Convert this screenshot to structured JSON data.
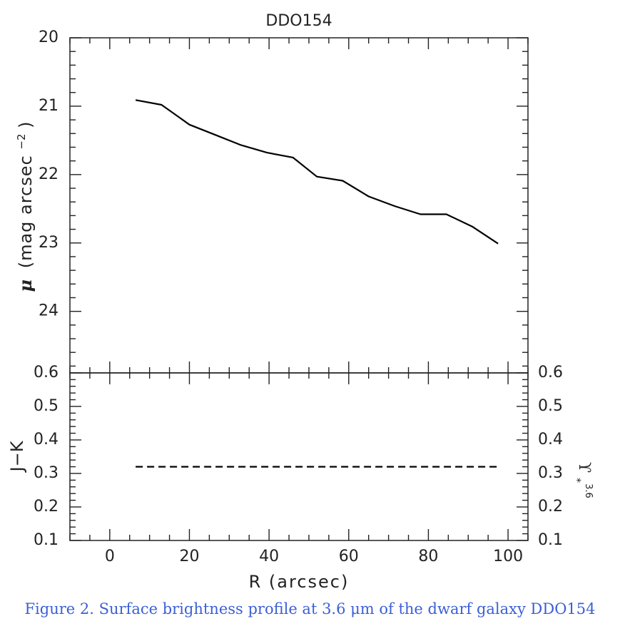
{
  "caption": "Figure 2. Surface brightness profile at 3.6 μm of the dwarf galaxy DDO154",
  "chart_data": [
    {
      "type": "line",
      "title": "DDO154",
      "ylabel": "μ (mag arcsec⁻²)",
      "ylabel_parts": {
        "mu": "μ",
        "text": "(mag arcsec",
        "exp": "−2",
        "close": ")"
      },
      "xlim": [
        -10,
        105
      ],
      "ylim": [
        20,
        24.9
      ],
      "y_inverted": true,
      "yticks": [
        20,
        21,
        22,
        23,
        24
      ],
      "yticklabels": [
        "20",
        "21",
        "22",
        "23",
        "24"
      ],
      "series": [
        {
          "style": "solid",
          "x": [
            6.5,
            13,
            20,
            26.5,
            33,
            39.5,
            46,
            52,
            58.5,
            65,
            71.5,
            78,
            84.5,
            91,
            97.5
          ],
          "y": [
            20.91,
            20.98,
            21.27,
            21.42,
            21.57,
            21.68,
            21.75,
            22.03,
            22.09,
            22.32,
            22.46,
            22.58,
            22.58,
            22.76,
            23.01
          ]
        }
      ]
    },
    {
      "type": "line",
      "xlabel": "R (arcsec)",
      "ylabel": "J−K",
      "ylabel_right": {
        "base": "ϒ",
        "sub": "*",
        "sup": "3.6"
      },
      "xlim": [
        -10,
        105
      ],
      "ylim": [
        0.1,
        0.6
      ],
      "xticks": [
        0,
        20,
        40,
        60,
        80,
        100
      ],
      "xticklabels": [
        "0",
        "20",
        "40",
        "60",
        "80",
        "100"
      ],
      "yticks": [
        0.1,
        0.2,
        0.3,
        0.4,
        0.5,
        0.6
      ],
      "yticklabels": [
        "0.1",
        "0.2",
        "0.3",
        "0.4",
        "0.5",
        "0.6"
      ],
      "yticklabels_right": [
        "0.1",
        "0.2",
        "0.3",
        "0.4",
        "0.5",
        "0.6"
      ],
      "series": [
        {
          "style": "dashed",
          "x": [
            6.5,
            97.5
          ],
          "y": [
            0.32,
            0.32
          ]
        }
      ]
    }
  ]
}
